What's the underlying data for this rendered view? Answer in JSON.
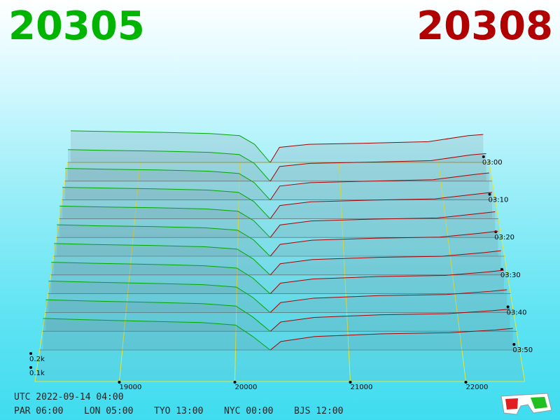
{
  "header": {
    "bid_price": "20305",
    "ask_price": "20308"
  },
  "chart": {
    "bid_prices": [
      18300,
      18700,
      19200,
      19700,
      20000,
      20150,
      20305
    ],
    "ask_prices": [
      20308,
      20400,
      20700,
      21300,
      21900,
      22300,
      22450
    ],
    "bid_color": "#00a800",
    "ask_color": "#a80000",
    "xticks": [
      19000,
      20000,
      21000,
      22000
    ],
    "zticks": [
      {
        "value": 100,
        "label": "0.1k"
      },
      {
        "value": 200,
        "label": "0.2k"
      }
    ],
    "snapshots": [
      {
        "time": "03:00",
        "bids": [
          262,
          256,
          250,
          240,
          222,
          150,
          0
        ],
        "asks": [
          0,
          125,
          150,
          160,
          172,
          222,
          232
        ]
      },
      {
        "time": null,
        "bids": [
          258,
          252,
          246,
          236,
          218,
          145,
          0
        ],
        "asks": [
          0,
          120,
          146,
          156,
          168,
          215,
          226
        ]
      },
      {
        "time": "03:10",
        "bids": [
          254,
          248,
          242,
          232,
          214,
          140,
          0
        ],
        "asks": [
          0,
          112,
          140,
          152,
          163,
          205,
          218
        ]
      },
      {
        "time": null,
        "bids": [
          250,
          244,
          238,
          228,
          210,
          136,
          0
        ],
        "asks": [
          0,
          105,
          135,
          148,
          158,
          196,
          210
        ]
      },
      {
        "time": "03:20",
        "bids": [
          247,
          240,
          234,
          224,
          206,
          132,
          0
        ],
        "asks": [
          0,
          98,
          130,
          144,
          153,
          188,
          202
        ]
      },
      {
        "time": null,
        "bids": [
          244,
          236,
          230,
          220,
          202,
          127,
          0
        ],
        "asks": [
          0,
          92,
          124,
          140,
          148,
          180,
          194
        ]
      },
      {
        "time": "03:30",
        "bids": [
          241,
          233,
          226,
          216,
          198,
          122,
          0
        ],
        "asks": [
          0,
          86,
          118,
          135,
          143,
          172,
          186
        ]
      },
      {
        "time": null,
        "bids": [
          238,
          230,
          222,
          212,
          194,
          117,
          0
        ],
        "asks": [
          0,
          80,
          112,
          130,
          138,
          165,
          178
        ]
      },
      {
        "time": "03:40",
        "bids": [
          235,
          226,
          218,
          208,
          190,
          112,
          0
        ],
        "asks": [
          0,
          74,
          107,
          126,
          134,
          158,
          170
        ]
      },
      {
        "time": null,
        "bids": [
          232,
          223,
          214,
          204,
          186,
          106,
          0
        ],
        "asks": [
          0,
          68,
          102,
          122,
          130,
          152,
          164
        ]
      },
      {
        "time": "03:50",
        "bids": [
          230,
          220,
          210,
          200,
          182,
          100,
          0
        ],
        "asks": [
          0,
          62,
          98,
          118,
          126,
          146,
          158
        ]
      }
    ]
  },
  "footer": {
    "utc": "UTC 2022-09-14 04:00",
    "cities": [
      "PAR 06:00",
      "LON 05:00",
      "TYO 13:00",
      "NYC 00:00",
      "BJS 12:00"
    ]
  }
}
